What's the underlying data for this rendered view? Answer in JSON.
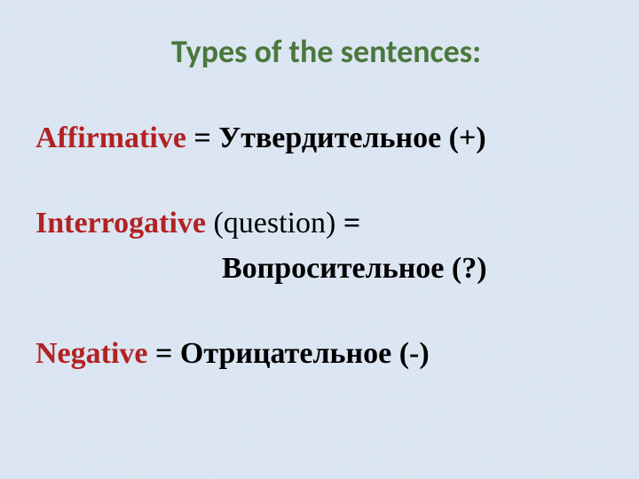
{
  "title": {
    "text": "Types of the sentences:",
    "color": "#4a783c",
    "font_size": 36,
    "font_family": "Calibri, Segoe UI, sans-serif",
    "font_weight": "bold"
  },
  "content": {
    "font_size": 34,
    "term_color": "#b22222",
    "body_color": "#000000",
    "rows": [
      {
        "term": "Affirmative",
        "rest": "  =  Утвердительное  (+)"
      },
      {
        "term": "Interrogative",
        "note": " (question)",
        "rest_after_note": "   =",
        "sub": "Вопросительное   (?)"
      },
      {
        "term": "Negative",
        "rest": "  = Отрицательное            (-)"
      }
    ]
  },
  "background_color": "#dce6f2"
}
